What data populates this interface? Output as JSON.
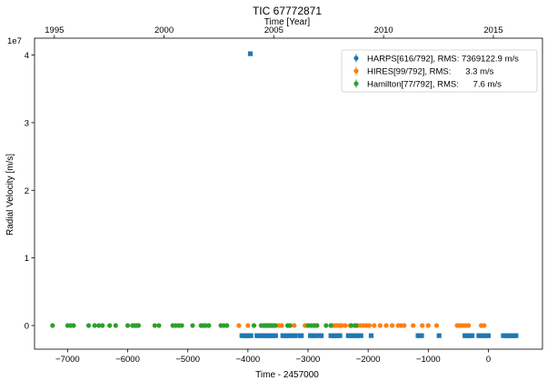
{
  "chart_data": {
    "type": "scatter",
    "title": "TIC 67772871",
    "xlabel": "Time - 2457000",
    "ylabel": "Radial Velocity [m/s]",
    "top_xlabel": "Time [Year]",
    "y_offset_label": "1e7",
    "xlim": [
      -7550,
      900
    ],
    "ylim": [
      -0.35,
      4.25
    ],
    "x_ticks": [
      -7000,
      -6000,
      -5000,
      -4000,
      -3000,
      -2000,
      -1000,
      0
    ],
    "x_tick_labels": [
      "−7000",
      "−6000",
      "−5000",
      "−4000",
      "−3000",
      "−2000",
      "−1000",
      "0"
    ],
    "y_ticks": [
      0,
      1,
      2,
      3,
      4
    ],
    "y_tick_labels": [
      "0",
      "1",
      "2",
      "3",
      "4"
    ],
    "top_ticks": [
      {
        "x": -7220,
        "label": "1995"
      },
      {
        "x": -5395,
        "label": "2000"
      },
      {
        "x": -3570,
        "label": "2005"
      },
      {
        "x": -1743,
        "label": "2010"
      },
      {
        "x": 83,
        "label": "2015"
      }
    ],
    "legend": [
      {
        "name": "HARPS[616/792], RMS: 7369122.9 m/s",
        "color": "#1f77b4"
      },
      {
        "name": "HIRES[99/792], RMS:      3.3 m/s",
        "color": "#ff7f0e"
      },
      {
        "name": "Hamilton[77/792], RMS:      7.6 m/s",
        "color": "#2ca02c"
      }
    ],
    "legend_position": "upper right",
    "series": [
      {
        "name": "HARPS[616/792], RMS: 7369122.9 m/s",
        "color": "#1f77b4",
        "marker": "square",
        "y": -0.15,
        "x": [
          -4100,
          -4070,
          -4040,
          -4010,
          -3980,
          -3950,
          -3850,
          -3820,
          -3790,
          -3760,
          -3730,
          -3700,
          -3670,
          -3640,
          -3610,
          -3580,
          -3540,
          -3420,
          -3390,
          -3360,
          -3330,
          -3300,
          -3250,
          -3220,
          -3140,
          -3110,
          -2960,
          -2930,
          -2900,
          -2870,
          -2810,
          -2780,
          -2620,
          -2590,
          -2560,
          -2530,
          -2500,
          -2470,
          -2330,
          -2300,
          -2260,
          -2230,
          -2200,
          -2180,
          -2120,
          -1950,
          -1170,
          -1140,
          -1110,
          -820,
          -390,
          -360,
          -330,
          -300,
          -270,
          -160,
          -130,
          -100,
          -70,
          -30,
          0,
          250,
          280,
          310,
          340,
          370,
          400,
          430,
          460
        ],
        "outlier": {
          "x": -3960,
          "y": 4.02
        }
      },
      {
        "name": "HIRES[99/792], RMS:      3.3 m/s",
        "color": "#ff7f0e",
        "marker": "circle",
        "y": 0,
        "x": [
          -4150,
          -4000,
          -3900,
          -3700,
          -3480,
          -3440,
          -3300,
          -3230,
          -3050,
          -2900,
          -2850,
          -2600,
          -2560,
          -2520,
          -2480,
          -2440,
          -2380,
          -2300,
          -2180,
          -2130,
          -2080,
          -2030,
          -1980,
          -1900,
          -1800,
          -1700,
          -1600,
          -1500,
          -1450,
          -1400,
          -1250,
          -1100,
          -1000,
          -860,
          -520,
          -480,
          -430,
          -380,
          -330,
          -120,
          -70
        ]
      },
      {
        "name": "Hamilton[77/792], RMS:      7.6 m/s",
        "color": "#2ca02c",
        "marker": "circle",
        "y": 0,
        "x": [
          -7250,
          -7000,
          -6950,
          -6900,
          -6650,
          -6550,
          -6480,
          -6420,
          -6300,
          -6200,
          -6000,
          -5920,
          -5880,
          -5850,
          -5820,
          -5550,
          -5480,
          -5250,
          -5200,
          -5150,
          -5100,
          -4920,
          -4780,
          -4740,
          -4700,
          -4650,
          -4450,
          -4400,
          -4350,
          -3900,
          -3780,
          -3740,
          -3720,
          -3690,
          -3660,
          -3630,
          -3600,
          -3570,
          -3540,
          -3340,
          -3300,
          -3000,
          -2950,
          -2900,
          -2850,
          -2700,
          -2620,
          -2280,
          -2220,
          -2200
        ]
      }
    ]
  }
}
